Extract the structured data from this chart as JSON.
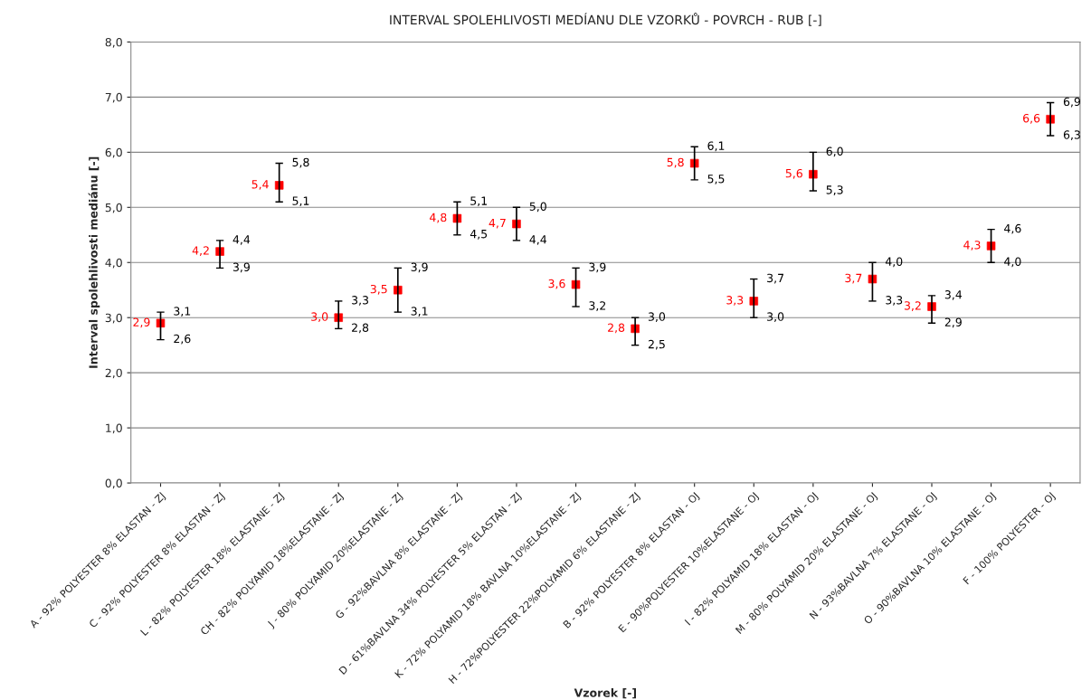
{
  "chart_data": {
    "type": "scatter",
    "title": "INTERVAL SPOLEHLIVOSTI MEDÍANU DLE VZORKŮ - POVRCH - RUB [-]",
    "xlabel": "Vzorek [-]",
    "ylabel": "Interval spolehlivosti mediánu [-]",
    "categories": [
      "A - 92% POLYESTER 8% ELASTAN - ZJ",
      "C - 92% POLYESTER 8% ELASTAN - ZJ",
      "L - 82% POLYESTER 18% ELASTANE - ZJ",
      "CH - 82% POLYAMID 18%ELASTANE - ZJ",
      "J - 80% POLYAMID 20%ELASTANE - ZJ",
      "G - 92%BAVLNA 8% ELASTANE - ZJ",
      "D - 61%BAVLNA 34% POLYESTER 5% ELASTAN - ZJ",
      "K - 72% POLYAMID 18% BAVLNA 10%ELASTANE - ZJ",
      "H - 72%POLYESTER 22%POLYAMID 6% ELASTANE - ZJ",
      "B - 92% POLYESTER 8% ELASTAN - OJ",
      "E - 90%POLYESTER 10%ELASTANE - OJ",
      "I - 82% POLYAMID 18% ELASTAN - OJ",
      "M - 80% POLYAMID 20% ELASTANE - OJ",
      "N - 93%BAVLNA 7% ELASTANE - OJ",
      "O - 90%BAVLNA 10% ELASTANE - OJ",
      "F - 100% POLYESTER - OJ"
    ],
    "values": [
      2.9,
      4.2,
      5.4,
      3.0,
      3.5,
      4.8,
      4.7,
      3.6,
      2.8,
      5.8,
      3.3,
      5.6,
      3.7,
      3.2,
      4.3,
      6.6
    ],
    "value_labels": [
      "2,9",
      "4,2",
      "5,4",
      "3,0",
      "3,5",
      "4,8",
      "4,7",
      "3,6",
      "2,8",
      "5,8",
      "3,3",
      "5,6",
      "3,7",
      "3,2",
      "4,3",
      "6,6"
    ],
    "errors": [
      [
        2.6,
        3.1
      ],
      [
        3.9,
        4.4
      ],
      [
        5.1,
        5.8
      ],
      [
        2.8,
        3.3
      ],
      [
        3.1,
        3.9
      ],
      [
        4.5,
        5.1
      ],
      [
        4.4,
        5.0
      ],
      [
        3.2,
        3.9
      ],
      [
        2.5,
        3.0
      ],
      [
        5.5,
        6.1
      ],
      [
        3.0,
        3.7
      ],
      [
        5.3,
        6.0
      ],
      [
        3.3,
        4.0
      ],
      [
        2.9,
        3.4
      ],
      [
        4.0,
        4.6
      ],
      [
        6.3,
        6.9
      ]
    ],
    "color": "#ff0000",
    "marker": "square",
    "grid": "y",
    "legend": false,
    "ylim": [
      0,
      8
    ],
    "yticks": [
      {
        "value": 0,
        "label": "0,0"
      },
      {
        "value": 1,
        "label": "1,0"
      },
      {
        "value": 2,
        "label": "2,0"
      },
      {
        "value": 3,
        "label": "3,0"
      },
      {
        "value": 4,
        "label": "4,0"
      },
      {
        "value": 5,
        "label": "5,0"
      },
      {
        "value": 6,
        "label": "6,0"
      },
      {
        "value": 7,
        "label": "7,0"
      },
      {
        "value": 8,
        "label": "8,0"
      }
    ],
    "annotations": [
      "3,1",
      "2,6",
      "4,4",
      "3,9",
      "5,8",
      "5,1",
      "3,3",
      "2,8",
      "3,9",
      "3,1",
      "5,1",
      "4,5",
      "5,0",
      "4,4",
      "3,9",
      "3,2",
      "3,0",
      "2,5",
      "6,1",
      "5,5",
      "3,7",
      "3,0",
      "6,0",
      "5,3",
      "4,0",
      "3,3",
      "3,4",
      "2,9",
      "4,6",
      "4,0",
      "6,9",
      "6,3"
    ]
  }
}
